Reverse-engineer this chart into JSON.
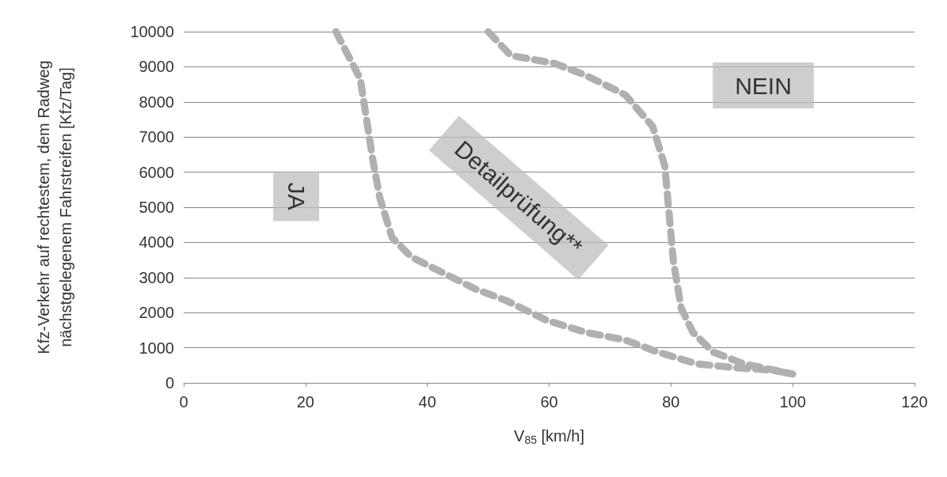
{
  "chart_data": {
    "type": "line",
    "xlabel": "V$_{85}$ [km/h]",
    "ylabel": "Kfz-Verkehr auf rechtestem, dem Radweg\nnächstgelegenem Fahrstreifen [Kfz/Tag]",
    "xlim": [
      0,
      120
    ],
    "xticks": [
      0,
      20,
      40,
      60,
      80,
      100,
      120
    ],
    "ylim": [
      0,
      10000
    ],
    "yticks": [
      0,
      1000,
      2000,
      3000,
      4000,
      5000,
      6000,
      7000,
      8000,
      9000,
      10000
    ],
    "grid": "y",
    "marker": "none",
    "line_style": "dashed",
    "series": [
      {
        "color": "#b0b0b0",
        "x": [
          25,
          29,
          31,
          32.2,
          34.2,
          37.4,
          42.6,
          47.8,
          53,
          59.6,
          66,
          72.5,
          77.8,
          84.3,
          90.7,
          96.6,
          100
        ],
        "values": [
          10000,
          8650,
          6400,
          5270,
          4140,
          3580,
          3130,
          2680,
          2340,
          1780,
          1440,
          1220,
          880,
          540,
          430,
          360,
          250
        ]
      },
      {
        "color": "#b0b0b0",
        "x": [
          50,
          53.7,
          60.8,
          66,
          72.5,
          77,
          79,
          79.7,
          80.4,
          81.7,
          83.6,
          86.9,
          92,
          97,
          100
        ],
        "values": [
          10000,
          9320,
          9100,
          8760,
          8200,
          7300,
          6170,
          4820,
          3470,
          2120,
          1440,
          880,
          540,
          360,
          250
        ]
      }
    ],
    "annotations": [
      "JA",
      "Detailprüfung**",
      "NEIN"
    ]
  }
}
